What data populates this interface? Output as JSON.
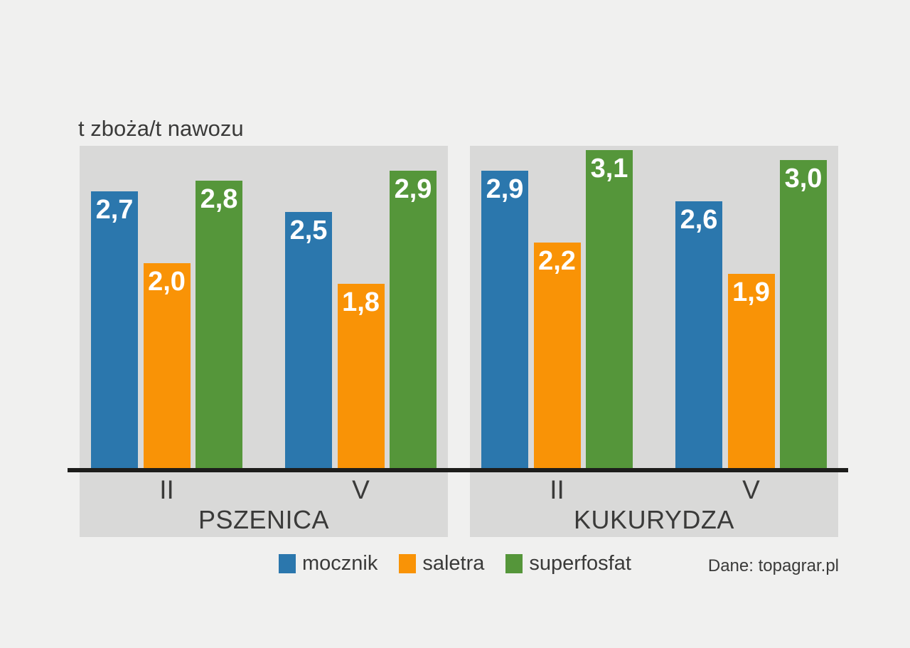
{
  "page": {
    "background_color": "#f0f0ef",
    "panel_color": "#d9d9d8",
    "axis_color": "#1d1d1b",
    "text_color": "#3a3a39",
    "value_label_color": "#ffffff"
  },
  "chart_data": {
    "type": "bar",
    "title": "t zboża/t nawozu",
    "ylabel": "t zboża/t nawozu",
    "ylim": [
      0,
      3.2
    ],
    "grid": false,
    "legend_position": "bottom",
    "value_labels_on_bars": true,
    "decimal_separator": ",",
    "series": [
      {
        "name": "mocznik",
        "color": "#2b77ad"
      },
      {
        "name": "saletra",
        "color": "#f99306"
      },
      {
        "name": "superfosfat",
        "color": "#55963a"
      }
    ],
    "panels": [
      {
        "name": "PSZENICA",
        "groups": [
          {
            "label": "II",
            "bars": [
              {
                "series": "mocznik",
                "value": 2.7,
                "display": "2,7"
              },
              {
                "series": "saletra",
                "value": 2.0,
                "display": "2,0"
              },
              {
                "series": "superfosfat",
                "value": 2.8,
                "display": "2,8"
              }
            ]
          },
          {
            "label": "V",
            "bars": [
              {
                "series": "mocznik",
                "value": 2.5,
                "display": "2,5"
              },
              {
                "series": "saletra",
                "value": 1.8,
                "display": "1,8"
              },
              {
                "series": "superfosfat",
                "value": 2.9,
                "display": "2,9"
              }
            ]
          }
        ]
      },
      {
        "name": "KUKURYDZA",
        "groups": [
          {
            "label": "II",
            "bars": [
              {
                "series": "mocznik",
                "value": 2.9,
                "display": "2,9"
              },
              {
                "series": "saletra",
                "value": 2.2,
                "display": "2,2"
              },
              {
                "series": "superfosfat",
                "value": 3.1,
                "display": "3,1"
              }
            ]
          },
          {
            "label": "V",
            "bars": [
              {
                "series": "mocznik",
                "value": 2.6,
                "display": "2,6"
              },
              {
                "series": "saletra",
                "value": 1.9,
                "display": "1,9"
              },
              {
                "series": "superfosfat",
                "value": 3.0,
                "display": "3,0"
              }
            ]
          }
        ]
      }
    ],
    "source": "Dane: topagrar.pl"
  }
}
